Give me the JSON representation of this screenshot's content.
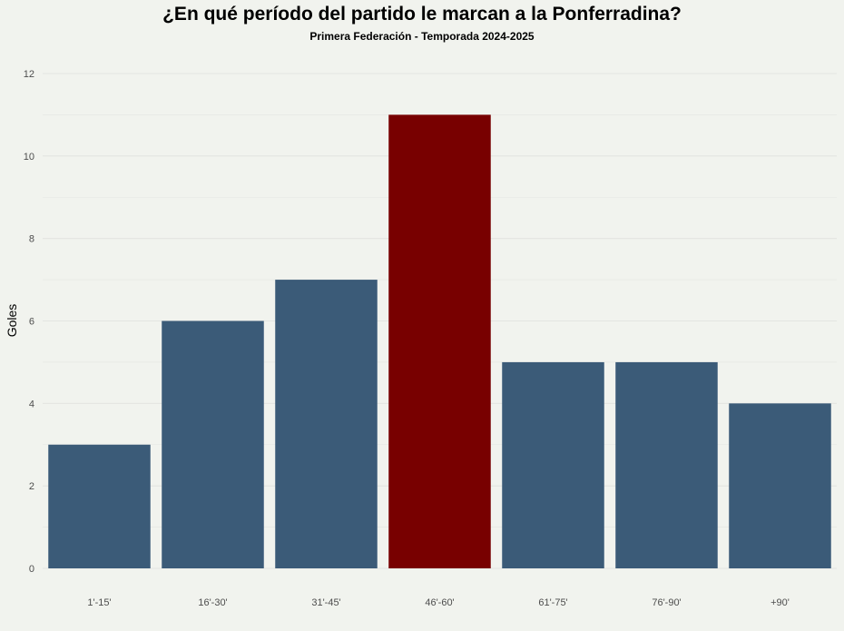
{
  "chart_data": {
    "type": "bar",
    "title": "¿En qué período del partido le marcan a la Ponferradina?",
    "subtitle": "Primera Federación - Temporada 2024-2025",
    "xlabel": "",
    "ylabel": "Goles",
    "categories": [
      "1'-15'",
      "16'-30'",
      "31'-45'",
      "46'-60'",
      "61'-75'",
      "76'-90'",
      "+90'"
    ],
    "values": [
      3,
      6,
      7,
      11,
      5,
      5,
      4
    ],
    "ylim": [
      0,
      12
    ],
    "yticks": [
      "0",
      "2",
      "4",
      "6",
      "8",
      "10",
      "12"
    ],
    "grid": true,
    "colors": {
      "default": "#3b5b78",
      "highlight": "#780000",
      "highlight_category": "46'-60'",
      "background": "#f1f3ee",
      "grid": "#e3e5e1"
    }
  }
}
